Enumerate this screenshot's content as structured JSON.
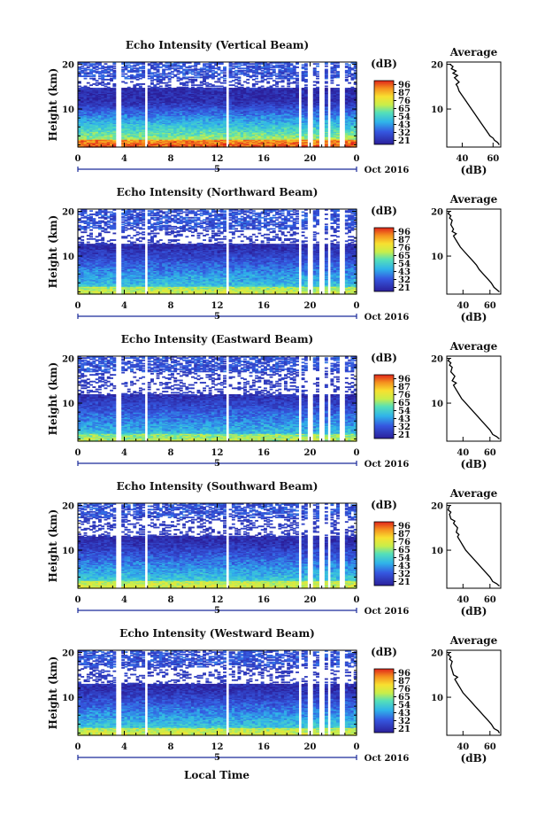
{
  "figure": {
    "xlabel": "Local Time"
  },
  "chart_data": [
    {
      "type": "heatmap",
      "title": "Echo Intensity (Vertical Beam)",
      "ylabel": "Height (km)",
      "x_ticks": [
        "0",
        "4",
        "8",
        "12",
        "16",
        "20",
        "0"
      ],
      "y_ticks": [
        "20",
        "10"
      ],
      "xlim": [
        0,
        24
      ],
      "ylim": [
        1.5,
        20.5
      ],
      "date_label": "Oct 2016",
      "day_label": "5",
      "colorbar": {
        "unit": "(dB)",
        "ticks": [
          "96",
          "87",
          "76",
          "65",
          "54",
          "43",
          "32",
          "21"
        ],
        "range": [
          21,
          96
        ]
      },
      "gaps_hours": [
        [
          3.2,
          3.4
        ],
        [
          3.6,
          3.8
        ],
        [
          5.7,
          6.0
        ],
        [
          12.7,
          13.0
        ],
        [
          18.9,
          19.2
        ],
        [
          19.8,
          20.3
        ],
        [
          20.8,
          21.2
        ],
        [
          21.5,
          21.7
        ],
        [
          22.6,
          23.0
        ]
      ],
      "strength": 1.05,
      "noise_top": 17.8,
      "high_gap": [
        14.8,
        16.8
      ],
      "average": {
        "title": "Average",
        "xlabel": "(dB)",
        "x_ticks": [
          "40",
          "60"
        ],
        "y_ticks": [
          "20",
          "10"
        ],
        "xlim": [
          30,
          65
        ],
        "ylim": [
          1.5,
          20.5
        ],
        "profile": [
          [
            64,
            2
          ],
          [
            63,
            2.5
          ],
          [
            61,
            3
          ],
          [
            60,
            3.5
          ],
          [
            58,
            4
          ],
          [
            56,
            5
          ],
          [
            54,
            6
          ],
          [
            52,
            7
          ],
          [
            50,
            8
          ],
          [
            48,
            9
          ],
          [
            46,
            10
          ],
          [
            44,
            11
          ],
          [
            42,
            12
          ],
          [
            40,
            13
          ],
          [
            38,
            14
          ],
          [
            37,
            15
          ],
          [
            36,
            15.5
          ],
          [
            38,
            16
          ],
          [
            35,
            17
          ],
          [
            37,
            17.5
          ],
          [
            34,
            18
          ],
          [
            36,
            18.5
          ],
          [
            33,
            19
          ],
          [
            34,
            19.5
          ],
          [
            32,
            20
          ]
        ]
      }
    },
    {
      "type": "heatmap",
      "title": "Echo Intensity (Northward Beam)",
      "ylabel": "Height (km)",
      "x_ticks": [
        "0",
        "4",
        "8",
        "12",
        "16",
        "20",
        "0"
      ],
      "y_ticks": [
        "20",
        "10"
      ],
      "xlim": [
        0,
        24
      ],
      "ylim": [
        1.5,
        20.5
      ],
      "date_label": "Oct 2016",
      "day_label": "5",
      "colorbar": {
        "unit": "(dB)",
        "ticks": [
          "96",
          "87",
          "76",
          "65",
          "54",
          "43",
          "32",
          "21"
        ],
        "range": [
          21,
          96
        ]
      },
      "gaps_hours": [
        [
          3.2,
          3.4
        ],
        [
          3.6,
          3.8
        ],
        [
          5.7,
          6.0
        ],
        [
          12.7,
          13.0
        ],
        [
          18.9,
          19.2
        ],
        [
          19.8,
          20.3
        ],
        [
          20.8,
          21.2
        ],
        [
          21.5,
          21.7
        ],
        [
          22.6,
          23.0
        ]
      ],
      "strength": 0.7,
      "noise_top": 17.5,
      "high_gap": [
        12.8,
        16.0
      ],
      "average": {
        "title": "Average",
        "xlabel": "(dB)",
        "x_ticks": [
          "40",
          "60"
        ],
        "y_ticks": [
          "20",
          "10"
        ],
        "xlim": [
          28,
          68
        ],
        "ylim": [
          1.5,
          20.5
        ],
        "profile": [
          [
            67,
            2
          ],
          [
            65,
            2.5
          ],
          [
            63,
            3
          ],
          [
            61,
            4
          ],
          [
            58,
            5
          ],
          [
            55,
            6
          ],
          [
            52,
            7
          ],
          [
            50,
            8
          ],
          [
            47,
            9
          ],
          [
            44,
            10
          ],
          [
            41,
            11
          ],
          [
            38,
            12
          ],
          [
            36,
            13
          ],
          [
            34,
            14
          ],
          [
            33,
            14.5
          ],
          [
            35,
            15
          ],
          [
            32,
            15.5
          ],
          [
            33,
            16
          ],
          [
            31,
            17
          ],
          [
            32,
            18
          ],
          [
            30,
            18.5
          ],
          [
            31,
            19
          ],
          [
            29,
            19.5
          ],
          [
            30,
            20
          ]
        ]
      }
    },
    {
      "type": "heatmap",
      "title": "Echo Intensity (Eastward Beam)",
      "ylabel": "Height (km)",
      "x_ticks": [
        "0",
        "4",
        "8",
        "12",
        "16",
        "20",
        "0"
      ],
      "y_ticks": [
        "20",
        "10"
      ],
      "xlim": [
        0,
        24
      ],
      "ylim": [
        1.5,
        20.5
      ],
      "date_label": "Oct 2016",
      "day_label": "5",
      "colorbar": {
        "unit": "(dB)",
        "ticks": [
          "96",
          "87",
          "76",
          "65",
          "54",
          "43",
          "32",
          "21"
        ],
        "range": [
          21,
          96
        ]
      },
      "gaps_hours": [
        [
          3.2,
          3.4
        ],
        [
          3.6,
          3.8
        ],
        [
          5.7,
          6.0
        ],
        [
          12.7,
          13.0
        ],
        [
          18.9,
          19.2
        ],
        [
          19.8,
          20.3
        ],
        [
          20.8,
          21.2
        ],
        [
          21.5,
          21.7
        ],
        [
          22.6,
          23.0
        ]
      ],
      "strength": 0.65,
      "noise_top": 11.8,
      "high_gap": [
        12.0,
        17.0
      ],
      "average": {
        "title": "Average",
        "xlabel": "(dB)",
        "x_ticks": [
          "40",
          "60"
        ],
        "y_ticks": [
          "20",
          "10"
        ],
        "xlim": [
          28,
          68
        ],
        "ylim": [
          1.5,
          20.5
        ],
        "profile": [
          [
            67,
            2
          ],
          [
            65,
            2.5
          ],
          [
            62,
            3
          ],
          [
            60,
            4
          ],
          [
            57,
            5
          ],
          [
            54,
            6
          ],
          [
            51,
            7
          ],
          [
            48,
            8
          ],
          [
            45,
            9
          ],
          [
            42,
            10
          ],
          [
            39,
            11
          ],
          [
            37,
            12
          ],
          [
            35,
            13
          ],
          [
            33,
            14
          ],
          [
            35,
            14.5
          ],
          [
            32,
            15
          ],
          [
            34,
            16
          ],
          [
            31,
            17
          ],
          [
            32,
            18
          ],
          [
            30,
            18.5
          ],
          [
            31,
            19
          ],
          [
            29,
            19.5
          ],
          [
            30,
            20
          ]
        ]
      }
    },
    {
      "type": "heatmap",
      "title": "Echo Intensity (Southward Beam)",
      "ylabel": "Height (km)",
      "x_ticks": [
        "0",
        "4",
        "8",
        "12",
        "16",
        "20",
        "0"
      ],
      "y_ticks": [
        "20",
        "10"
      ],
      "xlim": [
        0,
        24
      ],
      "ylim": [
        1.5,
        20.5
      ],
      "date_label": "Oct 2016",
      "day_label": "5",
      "colorbar": {
        "unit": "(dB)",
        "ticks": [
          "96",
          "87",
          "76",
          "65",
          "54",
          "43",
          "32",
          "21"
        ],
        "range": [
          21,
          96
        ]
      },
      "gaps_hours": [
        [
          3.2,
          3.4
        ],
        [
          3.6,
          3.8
        ],
        [
          5.7,
          6.0
        ],
        [
          12.7,
          13.0
        ],
        [
          18.9,
          19.2
        ],
        [
          19.8,
          20.3
        ],
        [
          20.8,
          21.2
        ],
        [
          21.5,
          21.7
        ],
        [
          22.6,
          23.0
        ]
      ],
      "strength": 0.72,
      "noise_top": 13.0,
      "high_gap": [
        13.2,
        17.2
      ],
      "average": {
        "title": "Average",
        "xlabel": "(dB)",
        "x_ticks": [
          "40",
          "60"
        ],
        "y_ticks": [
          "20",
          "10"
        ],
        "xlim": [
          28,
          68
        ],
        "ylim": [
          1.5,
          20.5
        ],
        "profile": [
          [
            67,
            2
          ],
          [
            65,
            2.5
          ],
          [
            62,
            3
          ],
          [
            60,
            4
          ],
          [
            57,
            5
          ],
          [
            54,
            6
          ],
          [
            51,
            7
          ],
          [
            48,
            8
          ],
          [
            45,
            9
          ],
          [
            42,
            10
          ],
          [
            40,
            11
          ],
          [
            38,
            12
          ],
          [
            36,
            13
          ],
          [
            37,
            13.5
          ],
          [
            35,
            14
          ],
          [
            36,
            15
          ],
          [
            33,
            16
          ],
          [
            34,
            16.5
          ],
          [
            31,
            17
          ],
          [
            30,
            18
          ],
          [
            31,
            18.5
          ],
          [
            29,
            19
          ],
          [
            30,
            20
          ]
        ]
      }
    },
    {
      "type": "heatmap",
      "title": "Echo Intensity (Westward Beam)",
      "ylabel": "Height (km)",
      "x_ticks": [
        "0",
        "4",
        "8",
        "12",
        "16",
        "20",
        "0"
      ],
      "y_ticks": [
        "20",
        "10"
      ],
      "xlim": [
        0,
        24
      ],
      "ylim": [
        1.5,
        20.5
      ],
      "date_label": "Oct 2016",
      "day_label": "5",
      "colorbar": {
        "unit": "(dB)",
        "ticks": [
          "96",
          "87",
          "76",
          "65",
          "54",
          "43",
          "32",
          "21"
        ],
        "range": [
          21,
          96
        ]
      },
      "gaps_hours": [
        [
          3.2,
          3.4
        ],
        [
          3.6,
          3.8
        ],
        [
          5.7,
          6.0
        ],
        [
          12.7,
          13.0
        ],
        [
          18.9,
          19.2
        ],
        [
          19.8,
          20.3
        ],
        [
          20.8,
          21.2
        ],
        [
          21.5,
          21.7
        ],
        [
          22.6,
          23.0
        ]
      ],
      "strength": 0.72,
      "noise_top": 13.0,
      "high_gap": [
        13.0,
        16.8
      ],
      "average": {
        "title": "Average",
        "xlabel": "(dB)",
        "x_ticks": [
          "40",
          "60"
        ],
        "y_ticks": [
          "20",
          "10"
        ],
        "xlim": [
          28,
          68
        ],
        "ylim": [
          1.5,
          20.5
        ],
        "profile": [
          [
            67,
            2
          ],
          [
            66,
            2.5
          ],
          [
            63,
            3
          ],
          [
            61,
            4
          ],
          [
            58,
            5
          ],
          [
            55,
            6
          ],
          [
            52,
            7
          ],
          [
            49,
            8
          ],
          [
            46,
            9
          ],
          [
            43,
            10
          ],
          [
            40,
            11
          ],
          [
            38,
            12
          ],
          [
            36,
            13
          ],
          [
            34,
            14
          ],
          [
            36,
            14.5
          ],
          [
            33,
            15
          ],
          [
            32,
            16
          ],
          [
            31,
            17
          ],
          [
            32,
            18
          ],
          [
            30,
            18.5
          ],
          [
            31,
            19
          ],
          [
            29,
            19.5
          ],
          [
            30,
            20
          ]
        ]
      }
    }
  ]
}
